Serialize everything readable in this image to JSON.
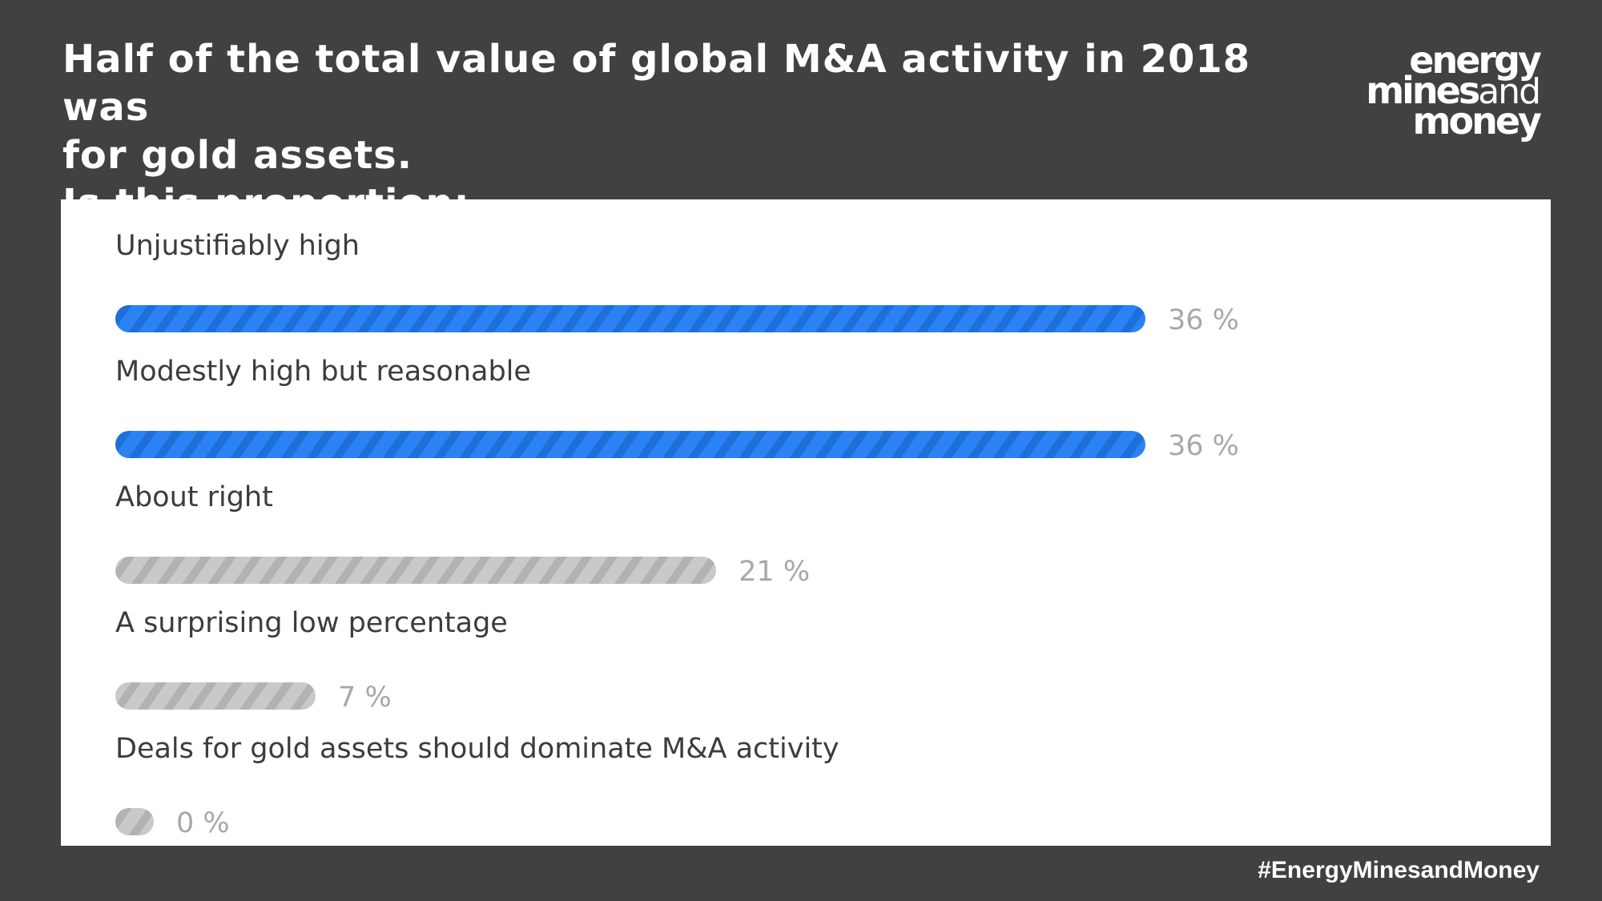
{
  "header": {
    "title_lines": [
      "Half of the total value of global M&A activity in 2018 was",
      "for gold assets.",
      "Is this proportion:"
    ]
  },
  "logo": {
    "line1": "energy",
    "line2_bold": "mines",
    "line2_light": "and",
    "line3": "money"
  },
  "footer": {
    "hashtag": "#EnergyMinesandMoney"
  },
  "colors": {
    "background": "#414143",
    "panel": "#ffffff",
    "highlight_bar": "#2a82f5",
    "other_bar": "#c9c9c9"
  },
  "chart_data": {
    "type": "bar",
    "orientation": "horizontal",
    "categories": [
      "Unjustifiably high",
      "Modestly high but reasonable",
      "About right",
      "A surprising low percentage",
      "Deals for gold assets should dominate M&A activity"
    ],
    "values": [
      36,
      36,
      21,
      7,
      0
    ],
    "value_labels": [
      "36 %",
      "36 %",
      "21 %",
      "7 %",
      "0 %"
    ],
    "highlighted": [
      true,
      true,
      false,
      false,
      false
    ],
    "xlim": [
      0,
      36
    ],
    "title": "",
    "xlabel": "",
    "ylabel": "",
    "grid": false,
    "legend": "none"
  }
}
